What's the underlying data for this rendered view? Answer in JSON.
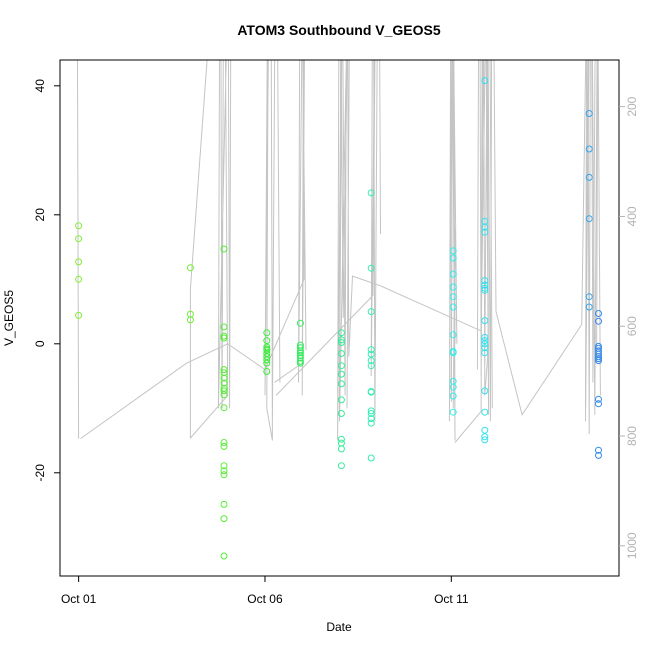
{
  "chart_data": {
    "type": "scatter",
    "title": "ATOM3 Southbound V_GEOS5",
    "xlabel": "Date",
    "ylabel": "V_GEOS5",
    "x_ticks": [
      {
        "day": 1,
        "label": "Oct 01"
      },
      {
        "day": 6,
        "label": "Oct 06"
      },
      {
        "day": 11,
        "label": "Oct 11"
      }
    ],
    "xlim": [
      0.5,
      15.5
    ],
    "ylim": [
      -36,
      44
    ],
    "y_ticks": [
      -20,
      0,
      20,
      40
    ],
    "right_axis": {
      "ticks": [
        200,
        400,
        600,
        800,
        1000
      ],
      "range": [
        1055,
        115
      ],
      "color": "#b3b3b3"
    },
    "series": [
      {
        "day": 1.0,
        "color": "#82ee33",
        "values": [
          18.3,
          16.3,
          12.7,
          10.0,
          4.4
        ]
      },
      {
        "day": 4.0,
        "color": "#70ee33",
        "values": [
          11.8,
          4.6,
          3.7
        ]
      },
      {
        "day": 4.9,
        "color": "#55ee33",
        "values": [
          14.7,
          2.6,
          1.2,
          0.9,
          -4.0,
          -4.5,
          -5.3,
          -6.1,
          -6.9,
          -7.3,
          -7.9,
          -9.9,
          -15.3,
          -15.9,
          -18.9,
          -19.7,
          -20.3,
          -24.9,
          -27.1,
          -32.9
        ]
      },
      {
        "day": 6.05,
        "color": "#3aee3a",
        "values": [
          1.7,
          0.5,
          -0.5,
          -0.8,
          -1.0,
          -1.5,
          -2.0,
          -2.5,
          -3.0,
          -4.3
        ]
      },
      {
        "day": 6.95,
        "color": "#33ee5e",
        "values": [
          3.2,
          -0.2,
          -0.6,
          -1.1,
          -1.4,
          -1.8,
          -2.2,
          -2.7,
          -3.0
        ]
      },
      {
        "day": 8.05,
        "color": "#33ee98",
        "values": [
          1.7,
          0.6,
          0.2,
          -1.5,
          -3.4,
          -4.7,
          -6.2,
          -8.7,
          -10.8,
          -14.8,
          -15.4,
          -16.3,
          -18.9
        ]
      },
      {
        "day": 8.85,
        "color": "#33eeb4",
        "values": [
          23.4,
          11.7,
          5.0,
          -0.9,
          -1.6,
          -2.6,
          -3.4,
          -7.4,
          -7.5,
          -10.4,
          -10.8,
          -11.6,
          -12.3,
          -17.7
        ]
      },
      {
        "day": 11.05,
        "color": "#33eeee",
        "values": [
          14.4,
          13.3,
          10.8,
          8.8,
          7.3,
          5.7,
          1.4,
          -1.2,
          -1.4,
          -5.8,
          -6.7,
          -8.1,
          -10.6
        ]
      },
      {
        "day": 11.9,
        "color": "#33e0ee",
        "values": [
          40.8,
          19.0,
          18.1,
          17.3,
          9.8,
          9.1,
          8.6,
          8.3,
          3.6,
          1.0,
          0.5,
          0.0,
          -0.6,
          -1.4,
          -7.3,
          -10.6,
          -13.4,
          -14.4,
          -14.9
        ]
      },
      {
        "day": 14.7,
        "color": "#33a6ee",
        "values": [
          35.7,
          30.2,
          25.8,
          19.4,
          7.3,
          5.7
        ]
      },
      {
        "day": 14.95,
        "color": "#338aee",
        "values": [
          4.7,
          3.5,
          -0.4,
          -0.7,
          -1.1,
          -1.6,
          -2.0,
          -2.3,
          -2.6,
          -8.6,
          -9.3,
          -16.5,
          -17.3
        ]
      }
    ],
    "profile_lines": [
      [
        [
          1.0,
          -14.7
        ],
        [
          0.95,
          80
        ],
        [
          5.0,
          80
        ],
        [
          5.05,
          -10
        ],
        [
          5.1,
          80
        ],
        [
          4.75,
          -10
        ],
        [
          4.8,
          80
        ],
        [
          4.85,
          -10
        ],
        [
          4.9,
          80
        ],
        [
          5.0,
          -8
        ],
        [
          4.0,
          -14.6
        ],
        [
          4.0,
          8.5
        ],
        [
          4.9,
          80
        ]
      ],
      [
        [
          1.05,
          -14.7
        ],
        [
          3.9,
          -3
        ],
        [
          5.0,
          0
        ],
        [
          6.0,
          -4
        ],
        [
          7.05,
          10
        ],
        [
          7.0,
          80
        ],
        [
          6.15,
          80
        ],
        [
          6.2,
          -15
        ],
        [
          6.05,
          -10
        ],
        [
          6.1,
          80
        ],
        [
          6.0,
          -8
        ],
        [
          6.15,
          80
        ],
        [
          6.2,
          -12
        ],
        [
          6.3,
          80
        ],
        [
          6.4,
          -6
        ]
      ],
      [
        [
          6.25,
          -6
        ],
        [
          7.0,
          -3
        ],
        [
          7.1,
          80
        ],
        [
          7.0,
          -8
        ],
        [
          7.05,
          80
        ],
        [
          6.9,
          -6
        ],
        [
          6.95,
          80
        ],
        [
          7.1,
          -1
        ]
      ],
      [
        [
          6.3,
          -8
        ],
        [
          8.9,
          7.5
        ],
        [
          9.0,
          80
        ],
        [
          8.85,
          -5
        ],
        [
          8.9,
          80
        ],
        [
          8.95,
          -12
        ],
        [
          9.05,
          80
        ],
        [
          9.1,
          17
        ]
      ],
      [
        [
          8.2,
          -10
        ],
        [
          8.3,
          80
        ],
        [
          8.0,
          -12
        ],
        [
          8.05,
          80
        ],
        [
          8.15,
          -8
        ],
        [
          8.2,
          80
        ],
        [
          8.25,
          -2
        ],
        [
          8.35,
          10.5
        ],
        [
          9.1,
          9
        ],
        [
          11.8,
          2
        ],
        [
          12.0,
          80
        ],
        [
          11.9,
          -3
        ],
        [
          12.0,
          80
        ],
        [
          12.1,
          -10
        ]
      ],
      [
        [
          8.0,
          -8
        ],
        [
          8.1,
          80
        ],
        [
          7.95,
          -15
        ],
        [
          8.0,
          80
        ],
        [
          8.1,
          4
        ],
        [
          8.3,
          80
        ]
      ],
      [
        [
          11.0,
          -8
        ],
        [
          11.05,
          80
        ],
        [
          11.1,
          -15
        ],
        [
          11.0,
          80
        ],
        [
          11.15,
          0
        ],
        [
          11.1,
          18
        ],
        [
          11.05,
          -10
        ]
      ],
      [
        [
          11.1,
          -15.3
        ],
        [
          11.8,
          -10.5
        ],
        [
          11.85,
          80
        ],
        [
          11.8,
          -5
        ],
        [
          11.9,
          80
        ],
        [
          12.0,
          -11
        ],
        [
          11.95,
          80
        ],
        [
          12.05,
          -12
        ],
        [
          12.1,
          80
        ],
        [
          12.2,
          5
        ],
        [
          12.9,
          -11
        ],
        [
          14.5,
          3
        ],
        [
          14.7,
          80
        ],
        [
          14.6,
          -12
        ],
        [
          14.75,
          80
        ],
        [
          14.85,
          -11
        ],
        [
          14.95,
          80
        ],
        [
          14.9,
          -3
        ]
      ],
      [
        [
          11.0,
          -9
        ],
        [
          11.05,
          80
        ],
        [
          10.95,
          -12
        ],
        [
          11.0,
          80
        ],
        [
          11.1,
          0
        ]
      ],
      [
        [
          11.7,
          -4
        ],
        [
          11.75,
          80
        ],
        [
          11.8,
          -2
        ],
        [
          11.85,
          80
        ],
        [
          11.9,
          -8
        ],
        [
          12.0,
          0
        ]
      ],
      [
        [
          14.6,
          -10
        ],
        [
          14.65,
          80
        ],
        [
          14.7,
          -14
        ],
        [
          14.75,
          80
        ],
        [
          14.8,
          -6
        ],
        [
          14.9,
          80
        ],
        [
          15.0,
          -8
        ]
      ]
    ]
  }
}
